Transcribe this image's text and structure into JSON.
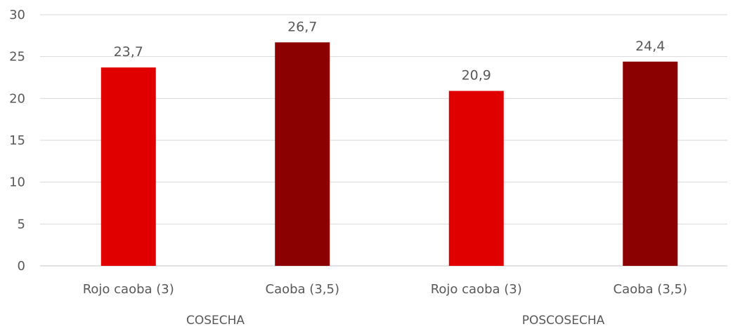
{
  "chart_data": {
    "type": "bar",
    "categories": [
      "Rojo caoba (3)",
      "Caoba (3,5)",
      "Rojo caoba (3)",
      "Caoba (3,5)"
    ],
    "groups": [
      {
        "label": "COSECHA",
        "categories": [
          "Rojo caoba (3)",
          "Caoba (3,5)"
        ],
        "values": [
          23.7,
          26.7
        ]
      },
      {
        "label": "POSCOSECHA",
        "categories": [
          "Rojo caoba (3)",
          "Caoba (3,5)"
        ],
        "values": [
          20.9,
          24.4
        ]
      }
    ],
    "values": [
      23.7,
      26.7,
      20.9,
      24.4
    ],
    "value_labels": [
      "23,7",
      "26,7",
      "20,9",
      "24,4"
    ],
    "bar_colors": [
      "#e00000",
      "#8b0000",
      "#e00000",
      "#8b0000"
    ],
    "title": "",
    "xlabel": "",
    "ylabel": "",
    "ylim": [
      0,
      30
    ],
    "yticks": [
      0,
      5,
      10,
      15,
      20,
      25,
      30
    ],
    "grid": true,
    "legend": "none",
    "gridline_color": "#d9d9d9",
    "axis_color": "#d9d9d9"
  }
}
